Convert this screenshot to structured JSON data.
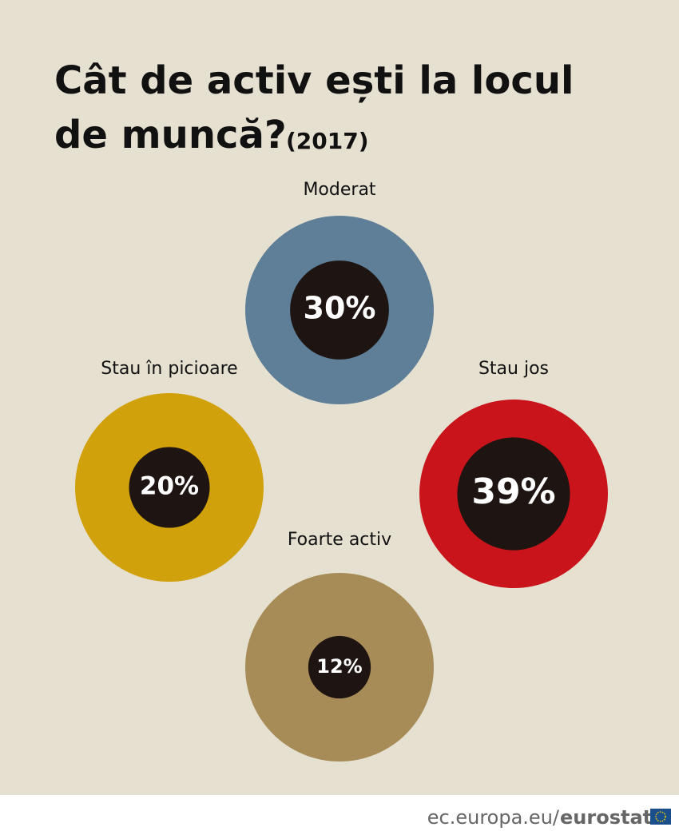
{
  "chart_data": {
    "type": "bubble",
    "title": "Cât de activ ești la locul de muncă?",
    "subtitle": "(2017)",
    "categories": [
      "Moderat",
      "Stau în picioare",
      "Stau jos",
      "Foarte activ"
    ],
    "values": [
      30,
      20,
      39,
      12
    ],
    "value_labels": [
      "30%",
      "20%",
      "39%",
      "12%"
    ],
    "colors": [
      "#5f7f98",
      "#d1a10c",
      "#c8141a",
      "#a78c58"
    ],
    "source": "ec.europa.eu/",
    "brand": "eurostat"
  }
}
